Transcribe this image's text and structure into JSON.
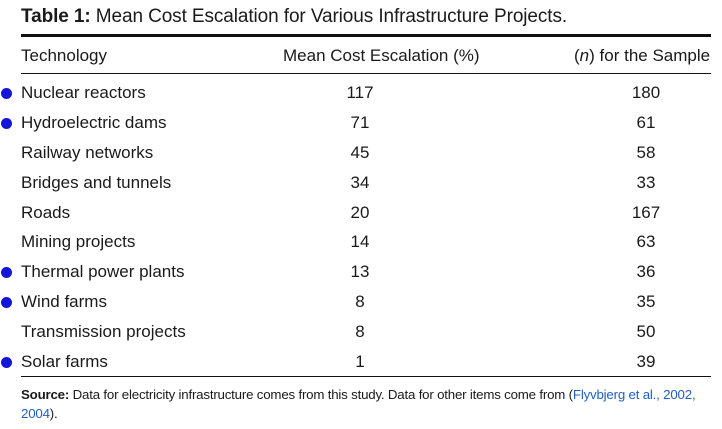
{
  "table": {
    "caption_label": "Table 1:",
    "caption_text": "Mean Cost Escalation for Various Infrastructure Projects.",
    "headers": {
      "technology": "Technology",
      "cost": "Mean Cost Escalation (%)",
      "n_symbol": "n",
      "n_text": " for the Sample"
    },
    "rows": [
      {
        "technology": "Nuclear reactors",
        "cost": "117",
        "n": "180",
        "marked": true
      },
      {
        "technology": "Hydroelectric dams",
        "cost": "71",
        "n": "61",
        "marked": true
      },
      {
        "technology": "Railway networks",
        "cost": "45",
        "n": "58",
        "marked": false
      },
      {
        "technology": "Bridges and tunnels",
        "cost": "34",
        "n": "33",
        "marked": false
      },
      {
        "technology": "Roads",
        "cost": "20",
        "n": "167",
        "marked": false
      },
      {
        "technology": "Mining projects",
        "cost": "14",
        "n": "63",
        "marked": false
      },
      {
        "technology": "Thermal power plants",
        "cost": "13",
        "n": "36",
        "marked": true
      },
      {
        "technology": "Wind farms",
        "cost": "8",
        "n": "35",
        "marked": true
      },
      {
        "technology": "Transmission projects",
        "cost": "8",
        "n": "50",
        "marked": false
      },
      {
        "technology": "Solar farms",
        "cost": "1",
        "n": "39",
        "marked": true
      }
    ],
    "marker_color": "#1515d9"
  },
  "source": {
    "label": "Source:",
    "text": " Data for electricity infrastructure comes from this study. Data for other items come from (",
    "citation": "Flyvbjerg et al., 2002, 2004",
    "end": ")."
  }
}
